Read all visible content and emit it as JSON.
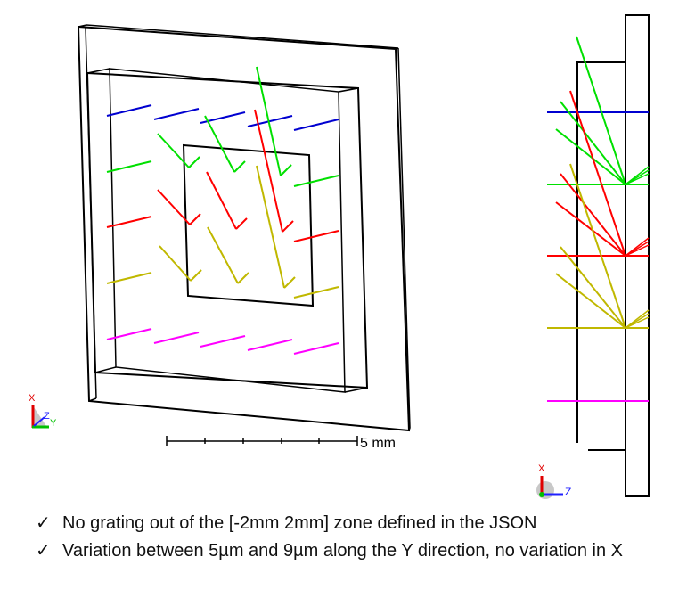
{
  "left_view": {
    "scale_bar_label": "5 mm",
    "triad": {
      "x_label": "X",
      "y_label": "Y",
      "z_label": "Z"
    }
  },
  "right_view": {
    "triad": {
      "x_label": "X",
      "z_label": "Z"
    }
  },
  "colors": {
    "row1": "#0000d0",
    "row2": "#00e000",
    "row3": "#ff0000",
    "row4": "#c0b800",
    "row5": "#ff00ff",
    "axis_x": "#e00000",
    "axis_y": "#00c000",
    "axis_z": "#2020ff"
  },
  "notes": [
    {
      "icon": "check-icon",
      "mark": "✓",
      "text": "No grating out of the [-2mm 2mm] zone defined in the JSON"
    },
    {
      "icon": "check-icon",
      "mark": "✓",
      "text": "Variation between 5µm and 9µm along the Y direction, no variation in X"
    }
  ]
}
